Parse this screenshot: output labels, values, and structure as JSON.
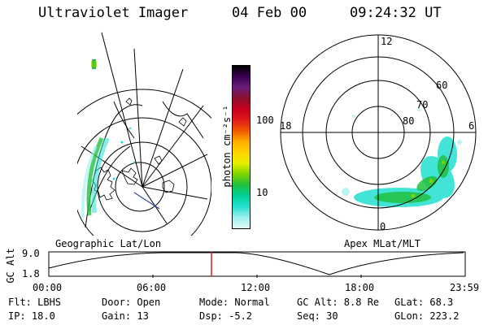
{
  "header": {
    "title": "Ultraviolet Imager",
    "date": "04 Feb 00",
    "time": "09:24:32 UT"
  },
  "left_panel": {
    "label": "Geographic Lat/Lon"
  },
  "right_panel": {
    "label": "Apex MLat/MLT",
    "mlt_labels": {
      "top": "12",
      "left": "18",
      "right": "6",
      "bottom": "0"
    },
    "lat_labels": [
      "60",
      "70",
      "80"
    ]
  },
  "colorbar": {
    "unit_label": "photon cm⁻²s⁻¹",
    "ticks": [
      "100",
      "10"
    ],
    "colors": [
      "#000000",
      "#3a0050",
      "#6b1f7a",
      "#8a0f2c",
      "#c8001e",
      "#e01a1a",
      "#ef5a00",
      "#ffae00",
      "#ffd400",
      "#e8f000",
      "#7cd400",
      "#20c040",
      "#00cf9a",
      "#22e0d0",
      "#9ef0ee",
      "#ddfaf8"
    ]
  },
  "timeline": {
    "y_label": "GC Alt",
    "y_ticks": [
      "9.0",
      "1.8"
    ],
    "x_ticks": [
      "00:00",
      "06:00",
      "12:00",
      "18:00",
      "23:59"
    ],
    "marker_time": "09:24"
  },
  "info": {
    "row1": [
      "Flt: LBHS",
      "Door: Open",
      "Mode: Normal",
      "GC Alt: 8.8 Re",
      "GLat:  68.3"
    ],
    "row2": [
      "IP: 18.0",
      "Gain: 13",
      "Dsp:    -5.2",
      "Seq: 30",
      "GLon: 223.2"
    ]
  }
}
